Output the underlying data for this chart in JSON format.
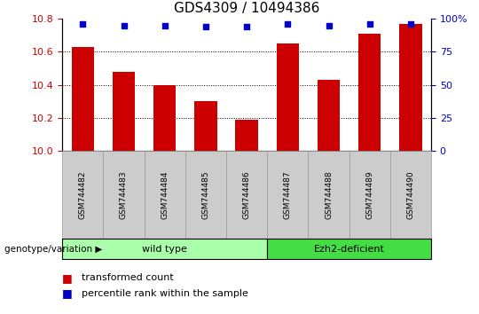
{
  "title": "GDS4309 / 10494386",
  "samples": [
    "GSM744482",
    "GSM744483",
    "GSM744484",
    "GSM744485",
    "GSM744486",
    "GSM744487",
    "GSM744488",
    "GSM744489",
    "GSM744490"
  ],
  "transformed_count": [
    10.63,
    10.48,
    10.4,
    10.3,
    10.19,
    10.65,
    10.43,
    10.71,
    10.77
  ],
  "percentile_rank": [
    96,
    95,
    95,
    94,
    94,
    96,
    95,
    96,
    96
  ],
  "ylim_left": [
    10.0,
    10.8
  ],
  "ylim_right": [
    0,
    100
  ],
  "yticks_left": [
    10.0,
    10.2,
    10.4,
    10.6,
    10.8
  ],
  "yticks_right": [
    0,
    25,
    50,
    75,
    100
  ],
  "bar_color": "#cc0000",
  "dot_color": "#0000cc",
  "grid_color": "#000000",
  "title_fontsize": 11,
  "tick_label_fontsize": 8,
  "axis_label_color_left": "#cc0000",
  "axis_label_color_right": "#0000cc",
  "groups": [
    {
      "label": "wild type",
      "start": 0,
      "end": 5,
      "color": "#aaffaa"
    },
    {
      "label": "Ezh2-deficient",
      "start": 5,
      "end": 9,
      "color": "#44dd44"
    }
  ],
  "group_label_left": "genotype/variation",
  "legend_items": [
    {
      "color": "#cc0000",
      "label": "transformed count"
    },
    {
      "color": "#0000cc",
      "label": "percentile rank within the sample"
    }
  ],
  "background_color": "#ffffff",
  "plot_bg_color": "#ffffff",
  "tick_area_bg": "#cccccc"
}
